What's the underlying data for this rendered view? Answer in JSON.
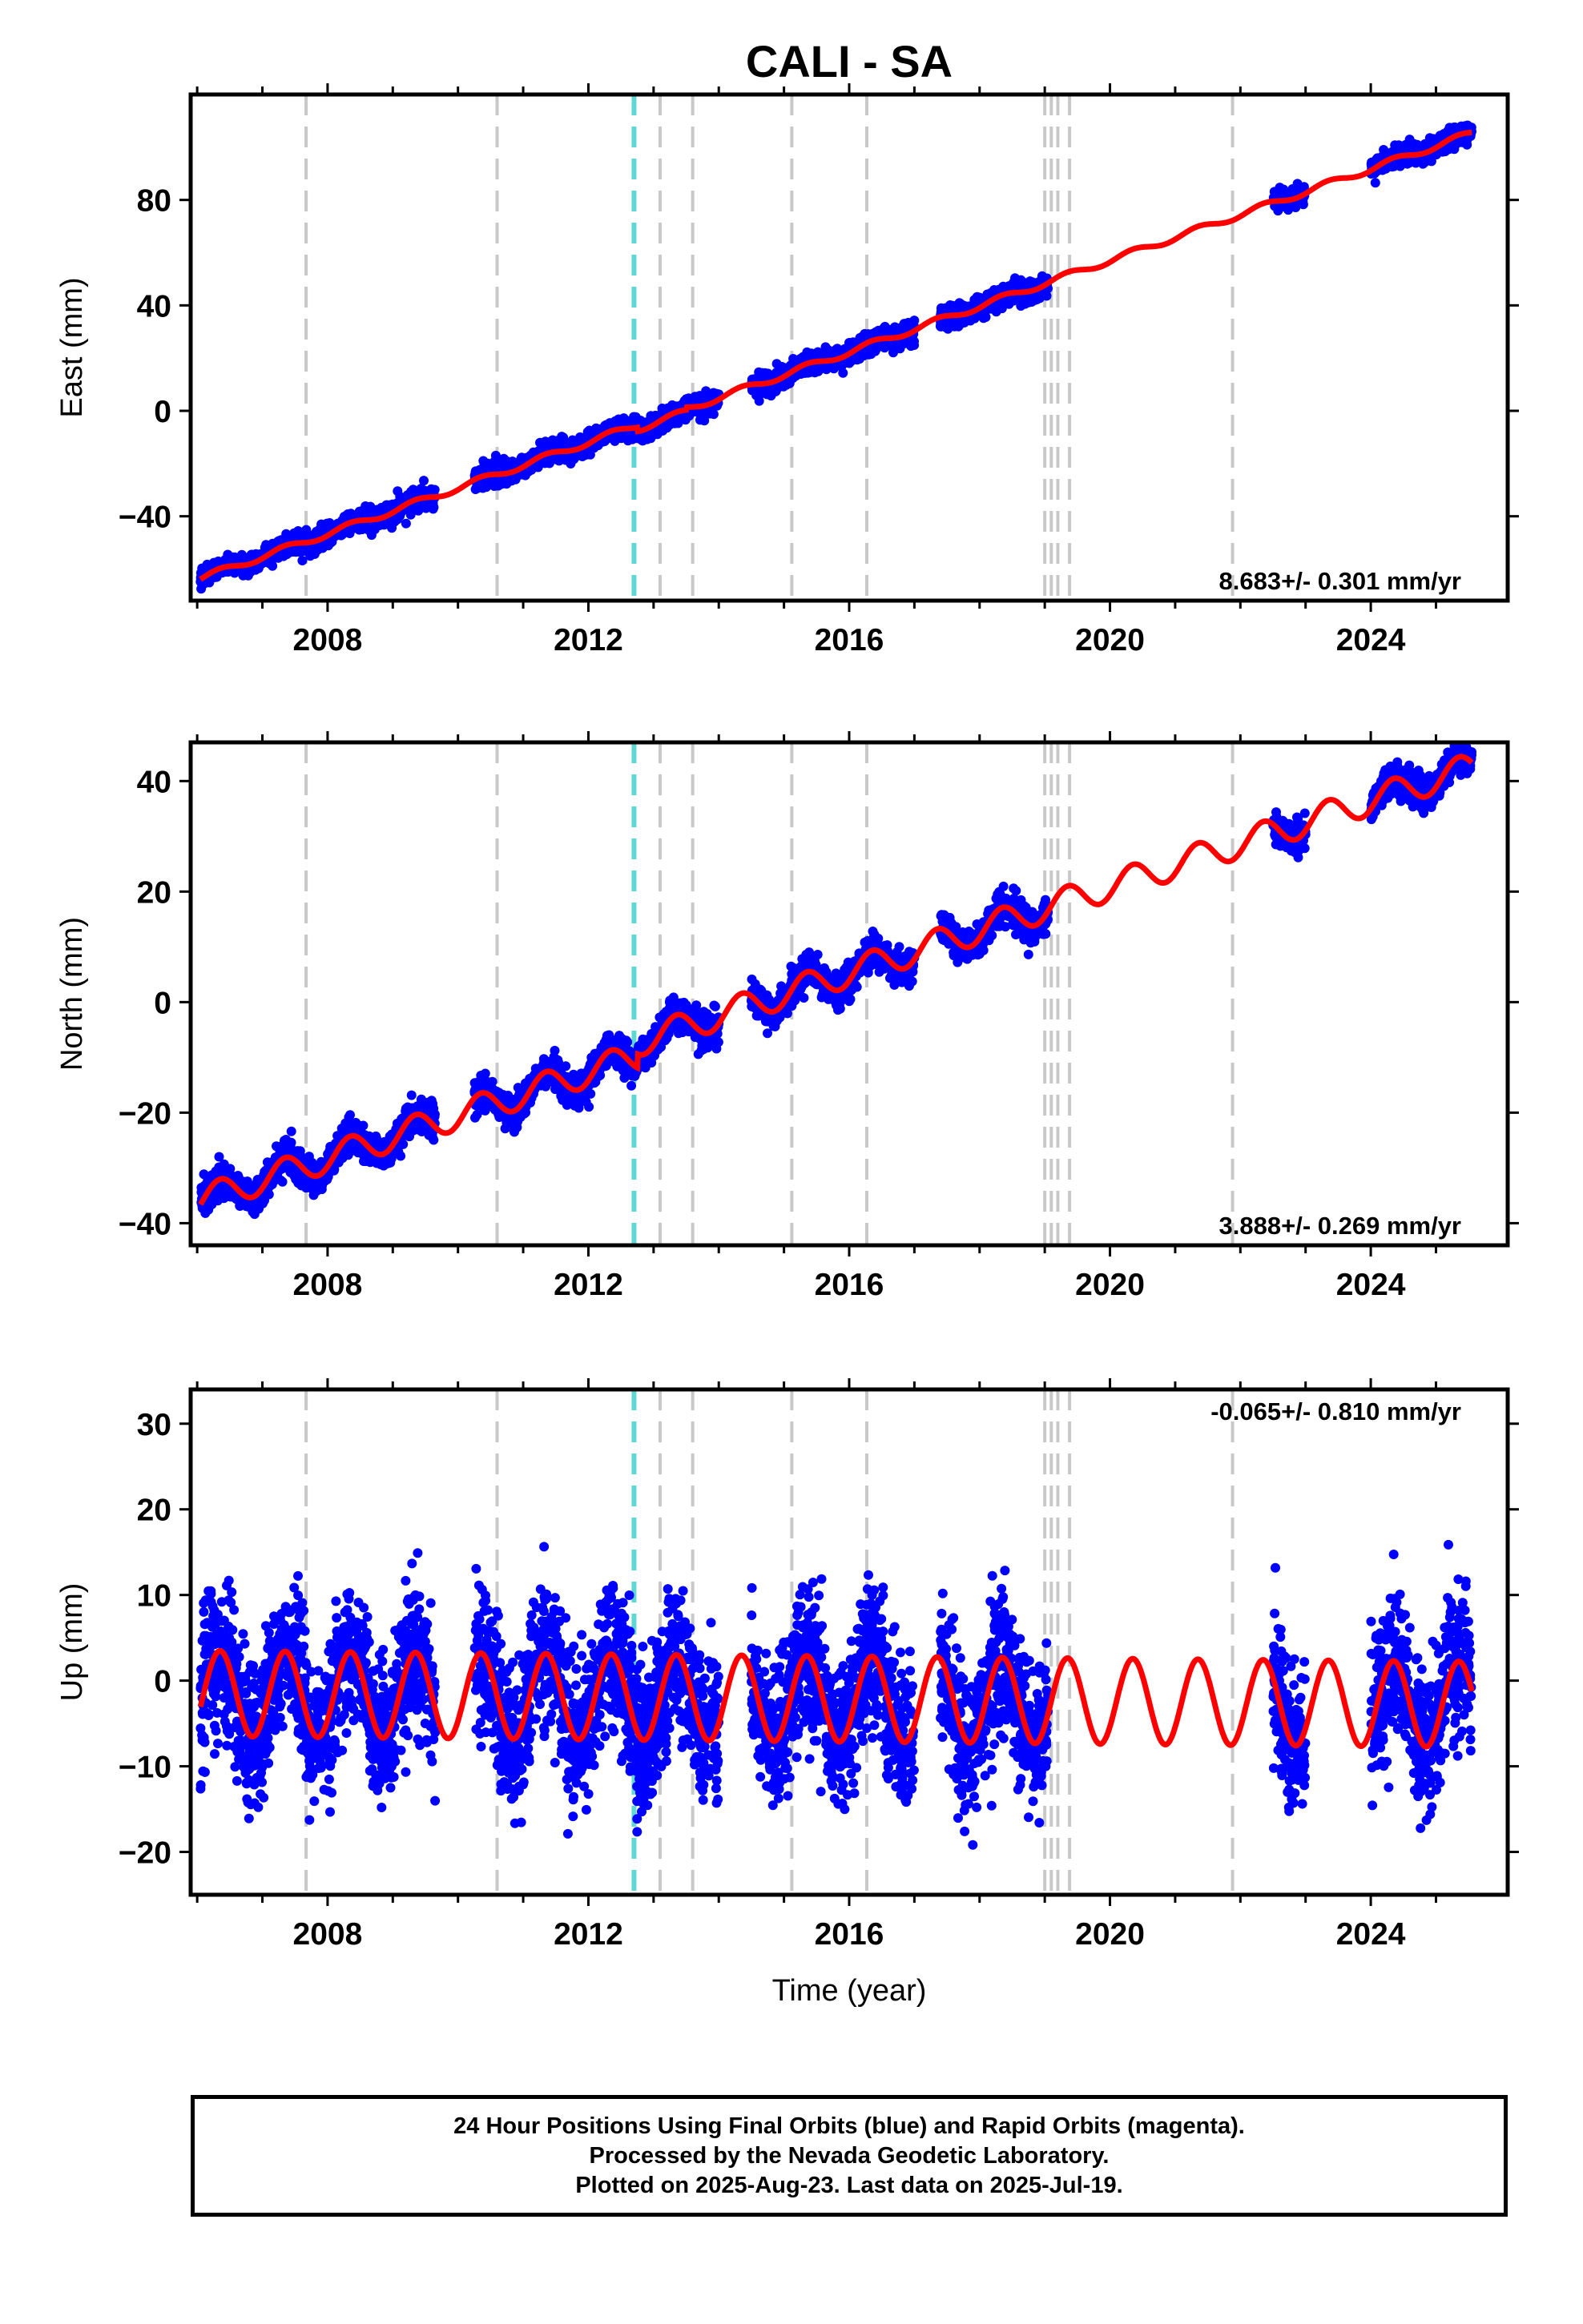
{
  "title": "CALI - SA",
  "chart_data": [
    {
      "type": "scatter",
      "panel": "east",
      "ylabel": "East (mm)",
      "xlabel": "",
      "xlim": [
        2005.9,
        2026.1
      ],
      "ylim": [
        -72,
        120
      ],
      "xticks": [
        2008,
        2012,
        2016,
        2020,
        2024
      ],
      "yticks": [
        -40,
        0,
        40,
        80
      ],
      "rate_label": "8.683+/- 0.301 mm/yr",
      "rate_position": "bottom-right",
      "trend": {
        "rate": 8.683,
        "value_at_2006": -64,
        "annual_amplitude": 1.2
      },
      "data_segments": [
        [
          2006.05,
          2009.65
        ],
        [
          2010.25,
          2014.0
        ],
        [
          2014.5,
          2017.0
        ],
        [
          2017.4,
          2019.05
        ],
        [
          2022.5,
          2023.0
        ],
        [
          2024.0,
          2025.55
        ]
      ],
      "scatter": 1.9,
      "offsets": [
        {
          "at": 2012.75,
          "mm": -1.5
        },
        {
          "at": 2013.5,
          "mm": 1.0
        }
      ],
      "fit_range": [
        2006.05,
        2025.55
      ]
    },
    {
      "type": "scatter",
      "panel": "north",
      "ylabel": "North (mm)",
      "xlabel": "",
      "xlim": [
        2005.9,
        2026.1
      ],
      "ylim": [
        -44,
        47
      ],
      "xticks": [
        2008,
        2012,
        2016,
        2020,
        2024
      ],
      "yticks": [
        -40,
        -20,
        0,
        20,
        40
      ],
      "rate_label": "3.888+/- 0.269 mm/yr",
      "rate_position": "bottom-right",
      "trend": {
        "rate": 3.888,
        "value_at_2006": -36,
        "annual_amplitude": 2.6
      },
      "data_segments": [
        [
          2006.05,
          2009.65
        ],
        [
          2010.25,
          2014.0
        ],
        [
          2014.5,
          2017.0
        ],
        [
          2017.4,
          2019.05
        ],
        [
          2022.5,
          2023.0
        ],
        [
          2024.0,
          2025.55
        ]
      ],
      "scatter": 1.4,
      "offsets": [
        {
          "at": 2012.75,
          "mm": 2.5
        }
      ],
      "fit_range": [
        2006.05,
        2025.55
      ]
    },
    {
      "type": "scatter",
      "panel": "up",
      "ylabel": "Up (mm)",
      "xlabel": "Time (year)",
      "xlim": [
        2005.9,
        2026.1
      ],
      "ylim": [
        -25,
        34
      ],
      "xticks": [
        2008,
        2012,
        2016,
        2020,
        2024
      ],
      "yticks": [
        -20,
        -10,
        0,
        10,
        20,
        30
      ],
      "rate_label": "-0.065+/- 0.810 mm/yr",
      "rate_position": "top-right",
      "trend": {
        "rate": -0.065,
        "value_at_2006": -1.5,
        "annual_amplitude": 5.0
      },
      "data_segments": [
        [
          2006.05,
          2009.65
        ],
        [
          2010.25,
          2014.0
        ],
        [
          2014.5,
          2017.0
        ],
        [
          2017.4,
          2019.05
        ],
        [
          2022.5,
          2023.0
        ],
        [
          2024.0,
          2025.55
        ]
      ],
      "scatter": 4.2,
      "offsets": [],
      "fit_range": [
        2006.05,
        2025.55
      ]
    }
  ],
  "events": {
    "gray_dashed_years": [
      2007.67,
      2010.6,
      2013.1,
      2013.6,
      2015.12,
      2016.27,
      2019.0,
      2019.1,
      2019.2,
      2019.38,
      2021.88
    ],
    "cyan_dashed_years": [
      2012.7
    ],
    "gray_color": "#c8c8c8",
    "cyan_color": "#5fd8d3"
  },
  "colors": {
    "final_orbits": "#0000ff",
    "fit_line": "#ff0000",
    "frame": "#000000"
  },
  "caption": {
    "line1": "24 Hour Positions Using Final Orbits (blue) and Rapid Orbits (magenta).",
    "line2": "Processed by the Nevada Geodetic Laboratory.",
    "line3": "Plotted on 2025-Aug-23. Last data on 2025-Jul-19."
  }
}
